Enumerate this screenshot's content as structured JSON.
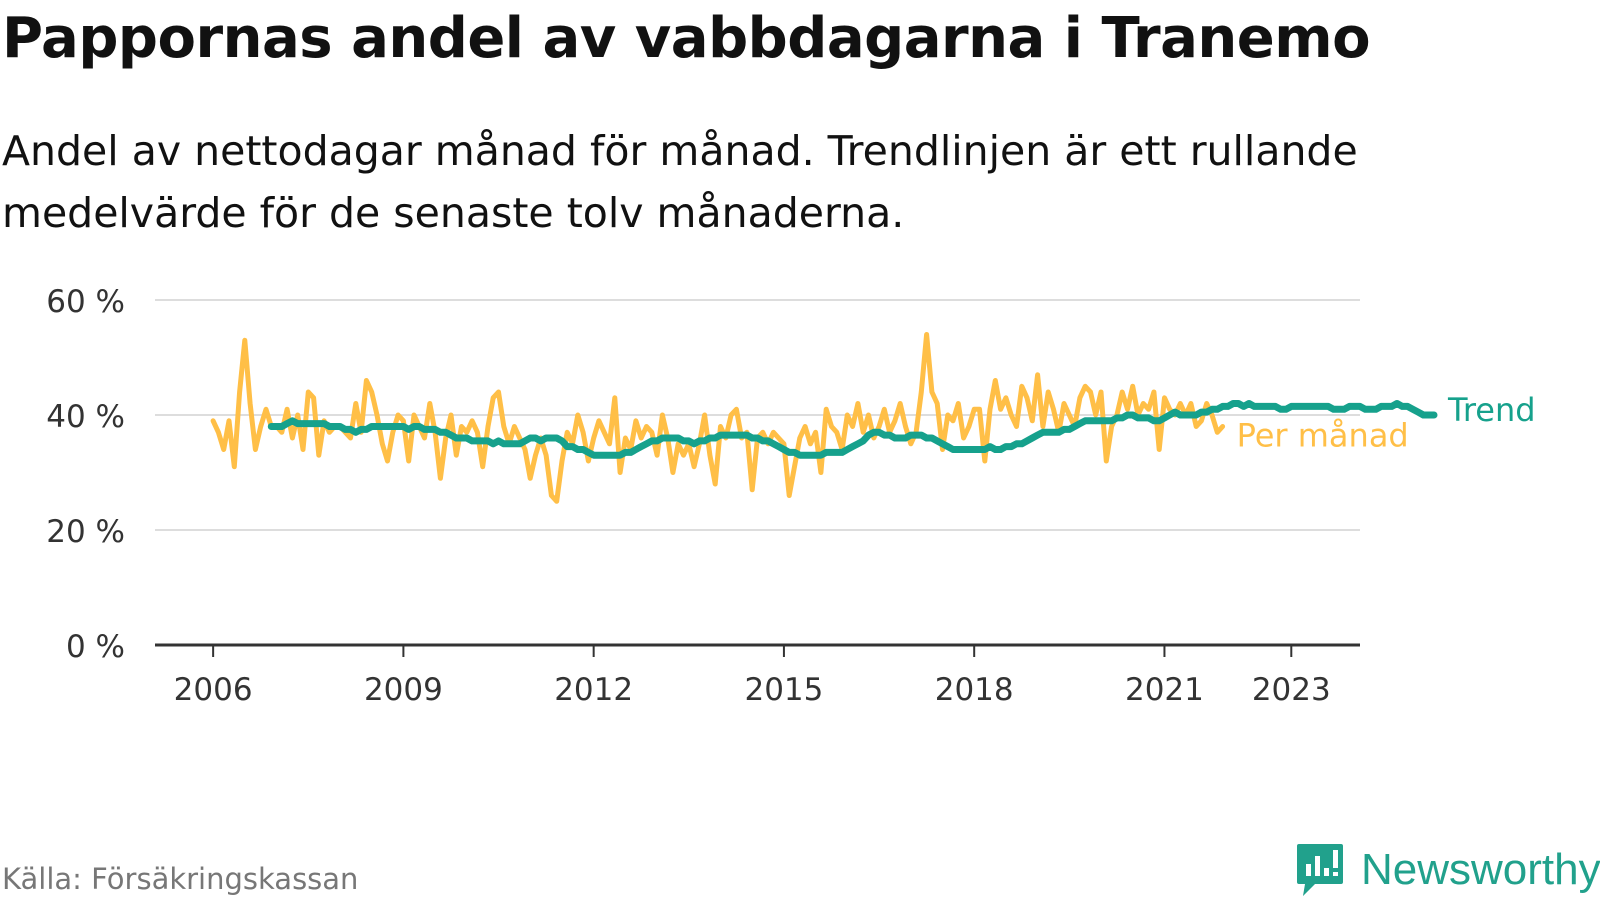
{
  "header": {
    "title": "Pappornas andel av vabbdagarna i Tranemo",
    "subtitle": "Andel av nettodagar månad för månad. Trendlinjen är ett rullande medelvärde för de senaste tolv månaderna."
  },
  "footer": {
    "source": "Källa: Försäkringskassan",
    "brand": "Newsworthy",
    "brand_color": "#21a18c"
  },
  "chart_data": {
    "type": "line",
    "title": "Pappornas andel av vabbdagarna i Tranemo",
    "subtitle": "Andel av nettodagar månad för månad. Trendlinjen är ett rullande medelvärde för de senaste tolv månaderna.",
    "xlabel": "",
    "ylabel": "",
    "x_ticks": [
      "2006",
      "2009",
      "2012",
      "2015",
      "2018",
      "2021",
      "2023"
    ],
    "y_ticks": [
      "0 %",
      "20 %",
      "40 %",
      "60 %"
    ],
    "ylim": [
      0,
      60
    ],
    "xlim": [
      "2005-02",
      "2024-02"
    ],
    "grid": "horizontal",
    "legend": "inline labels at line ends (right)",
    "series": [
      {
        "name": "Per månad",
        "color": "#ffbf47",
        "x_start": "2006-01",
        "frequency": "monthly",
        "values": [
          39,
          37,
          34,
          39,
          31,
          44,
          53,
          42,
          34,
          38,
          41,
          38,
          38,
          37,
          41,
          36,
          40,
          34,
          44,
          43,
          33,
          39,
          37,
          38,
          38,
          37,
          36,
          42,
          37,
          46,
          44,
          40,
          35,
          32,
          37,
          40,
          39,
          32,
          40,
          38,
          36,
          42,
          37,
          29,
          36,
          40,
          33,
          38,
          37,
          39,
          37,
          31,
          38,
          43,
          44,
          38,
          35,
          38,
          36,
          34,
          29,
          33,
          36,
          33,
          26,
          25,
          32,
          37,
          35,
          40,
          37,
          32,
          36,
          39,
          37,
          35,
          43,
          30,
          36,
          34,
          39,
          36,
          38,
          37,
          33,
          40,
          36,
          30,
          35,
          33,
          35,
          31,
          35,
          40,
          33,
          28,
          38,
          36,
          40,
          41,
          36,
          37,
          27,
          36,
          37,
          35,
          37,
          36,
          35,
          26,
          31,
          36,
          38,
          35,
          37,
          30,
          41,
          38,
          37,
          34,
          40,
          38,
          42,
          37,
          40,
          36,
          38,
          41,
          37,
          39,
          42,
          38,
          35,
          37,
          44,
          54,
          44,
          42,
          34,
          40,
          39,
          42,
          36,
          38,
          41,
          41,
          32,
          41,
          46,
          41,
          43,
          40,
          38,
          45,
          43,
          39,
          47,
          38,
          44,
          41,
          37,
          42,
          40,
          38,
          43,
          45,
          44,
          40,
          44,
          32,
          38,
          40,
          44,
          41,
          45,
          40,
          42,
          41,
          44,
          34,
          43,
          41,
          40,
          42,
          40,
          42,
          38,
          39,
          42,
          40,
          37,
          38
        ]
      },
      {
        "name": "Trend",
        "color": "#16a18c",
        "x_start": "2006-12",
        "frequency": "monthly",
        "values": [
          38,
          38,
          38,
          38.5,
          39,
          38.5,
          38.5,
          38.5,
          38.5,
          38.5,
          38.5,
          38,
          38,
          38,
          37.5,
          37.5,
          37,
          37.5,
          37.5,
          38,
          38,
          38,
          38,
          38,
          38,
          38,
          37.5,
          38,
          38,
          37.5,
          37.5,
          37.5,
          37,
          37,
          36.5,
          36,
          36,
          36,
          35.5,
          35.5,
          35.5,
          35.5,
          35,
          35.5,
          35,
          35,
          35,
          35,
          35.5,
          36,
          36,
          35.5,
          36,
          36,
          36,
          35.5,
          34.5,
          34.5,
          34,
          34,
          33.5,
          33,
          33,
          33,
          33,
          33,
          33,
          33.5,
          33.5,
          34,
          34.5,
          35,
          35.5,
          35.5,
          36,
          36,
          36,
          36,
          35.5,
          35.5,
          35,
          35.5,
          35.5,
          36,
          36,
          36.5,
          36.5,
          36.5,
          36.5,
          36.5,
          36.5,
          36,
          36,
          35.5,
          35.5,
          35,
          34.5,
          34,
          33.5,
          33.5,
          33,
          33,
          33,
          33,
          33,
          33.5,
          33.5,
          33.5,
          33.5,
          34,
          34.5,
          35,
          35.5,
          36.5,
          37,
          37,
          36.5,
          36.5,
          36,
          36,
          36,
          36.5,
          36.5,
          36.5,
          36,
          36,
          35.5,
          35,
          34.5,
          34,
          34,
          34,
          34,
          34,
          34,
          34,
          34.5,
          34,
          34,
          34.5,
          34.5,
          35,
          35,
          35.5,
          36,
          36.5,
          37,
          37,
          37,
          37,
          37.5,
          37.5,
          38,
          38.5,
          39,
          39,
          39,
          39,
          39,
          39,
          39.5,
          39.5,
          40,
          40,
          39.5,
          39.5,
          39.5,
          39,
          39,
          39.5,
          40,
          40.5,
          40,
          40,
          40,
          40,
          40.5,
          40.5,
          41,
          41,
          41.5,
          41.5,
          42,
          42,
          41.5,
          42,
          41.5,
          41.5,
          41.5,
          41.5,
          41.5,
          41,
          41,
          41.5,
          41.5,
          41.5,
          41.5,
          41.5,
          41.5,
          41.5,
          41.5,
          41,
          41,
          41,
          41.5,
          41.5,
          41.5,
          41,
          41,
          41,
          41.5,
          41.5,
          41.5,
          42,
          41.5,
          41.5,
          41,
          40.5,
          40,
          40,
          40
        ]
      }
    ]
  }
}
